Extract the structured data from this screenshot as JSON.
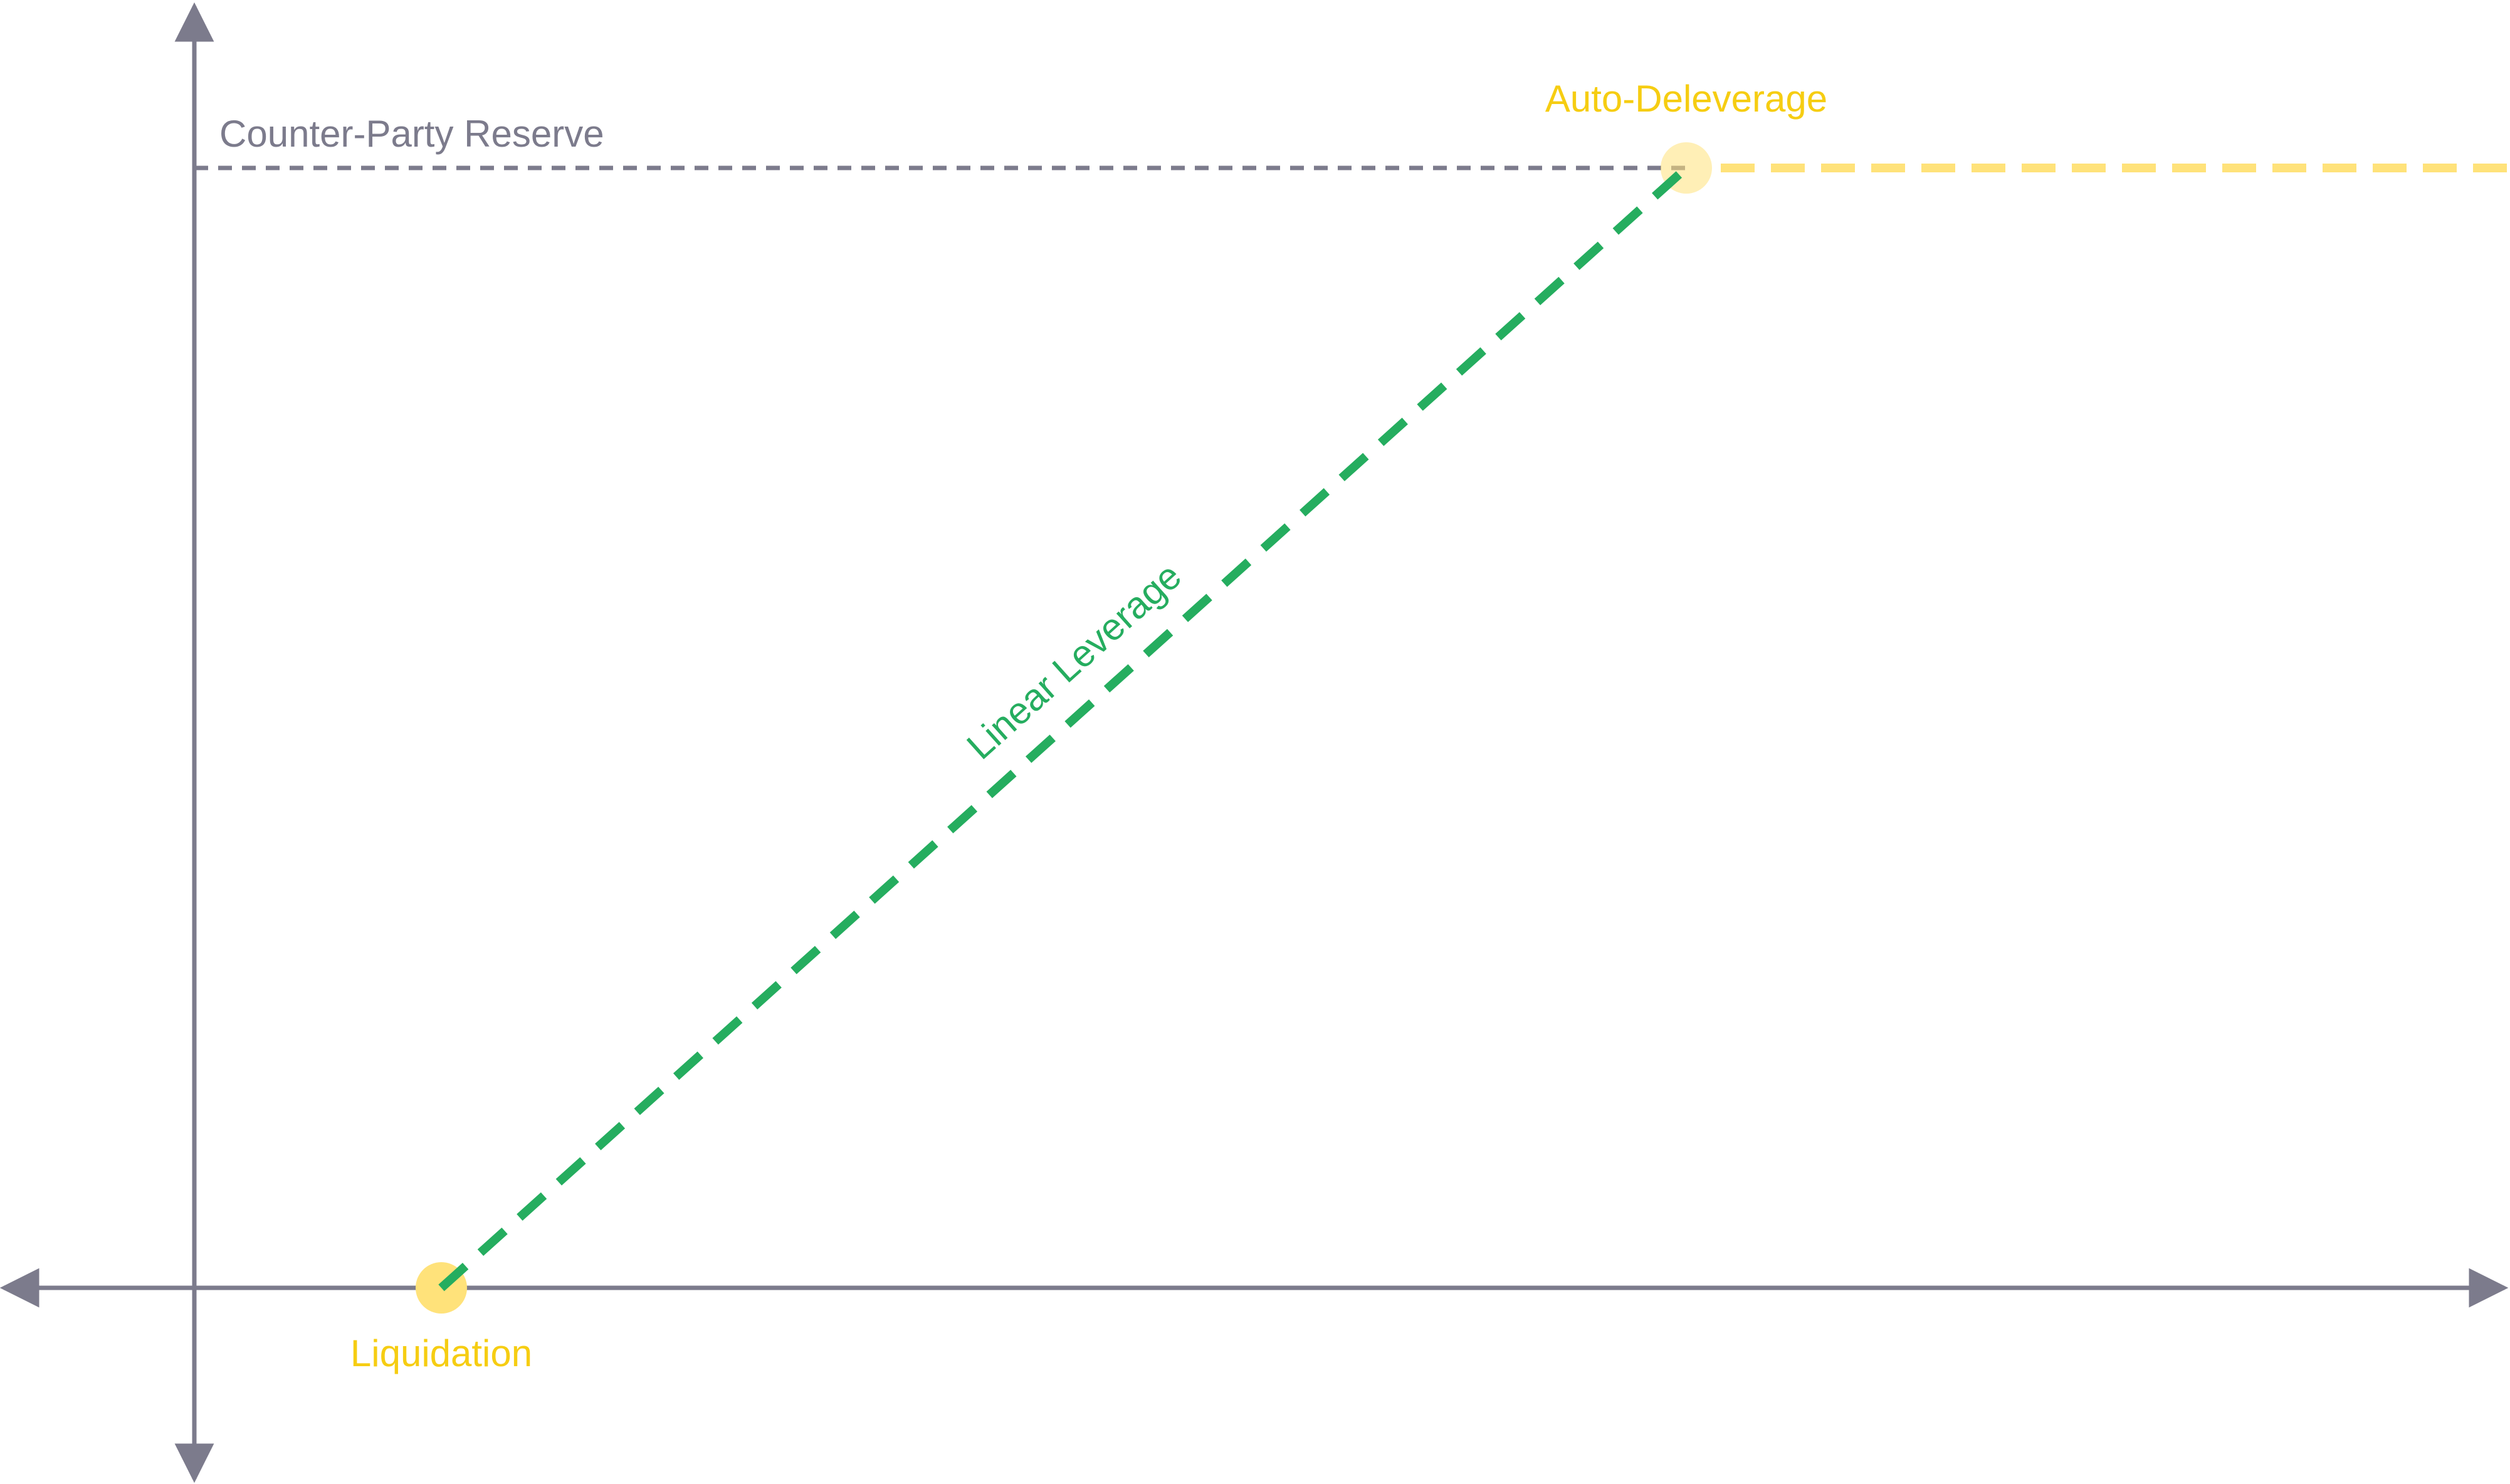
{
  "labels": {
    "reserve": "Counter-Party Reserve",
    "auto_deleverage": "Auto-Deleverage",
    "linear_leverage": "Linear Leverage",
    "liquidation": "Liquidation"
  },
  "colors": {
    "axis": "#7c7b8c",
    "reserve_line": "#7c7b8c",
    "reserve_text": "#7c7b8c",
    "leverage_line": "#25ad5f",
    "leverage_text": "#25ad5f",
    "highlight": "#ffe27a",
    "highlight_text": "#f6cd12"
  }
}
